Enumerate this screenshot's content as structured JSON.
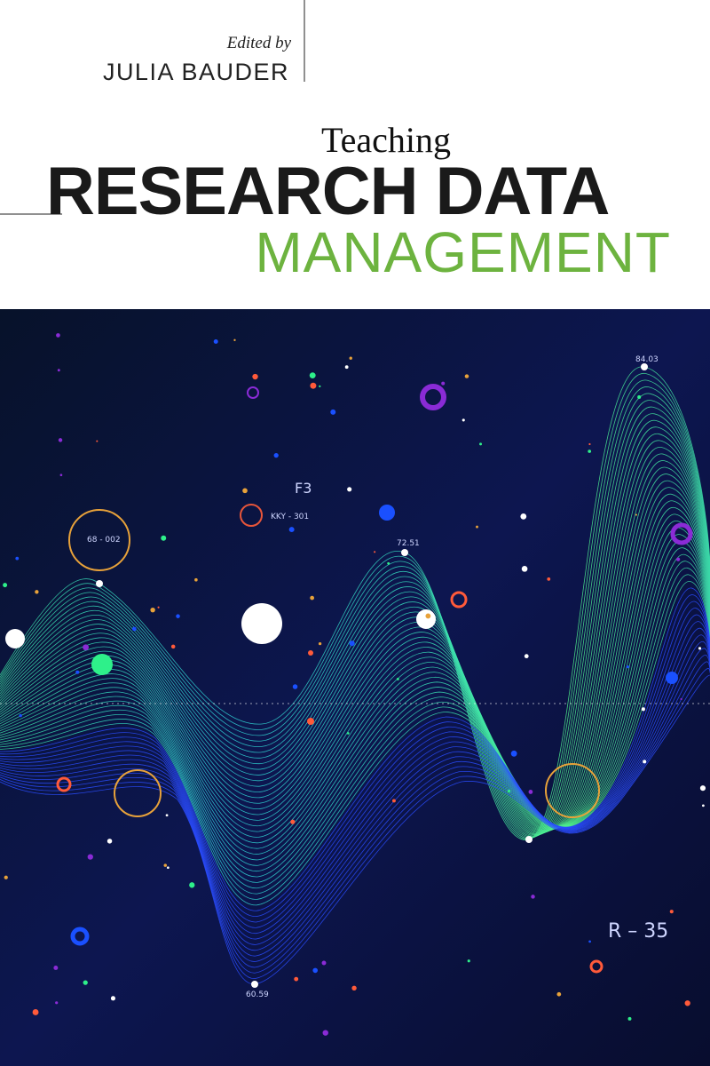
{
  "cover": {
    "editor_label": "Edited by",
    "editor": "JULIA BAUDER",
    "title_prefix": "Teaching",
    "title_main": "RESEARCH DATA",
    "title_sub": "MANAGEMENT",
    "art_labels": [
      "68 - 002",
      "KKY - 301",
      "72.51",
      "84.03",
      "60.59",
      "F3",
      "R – 35"
    ]
  }
}
